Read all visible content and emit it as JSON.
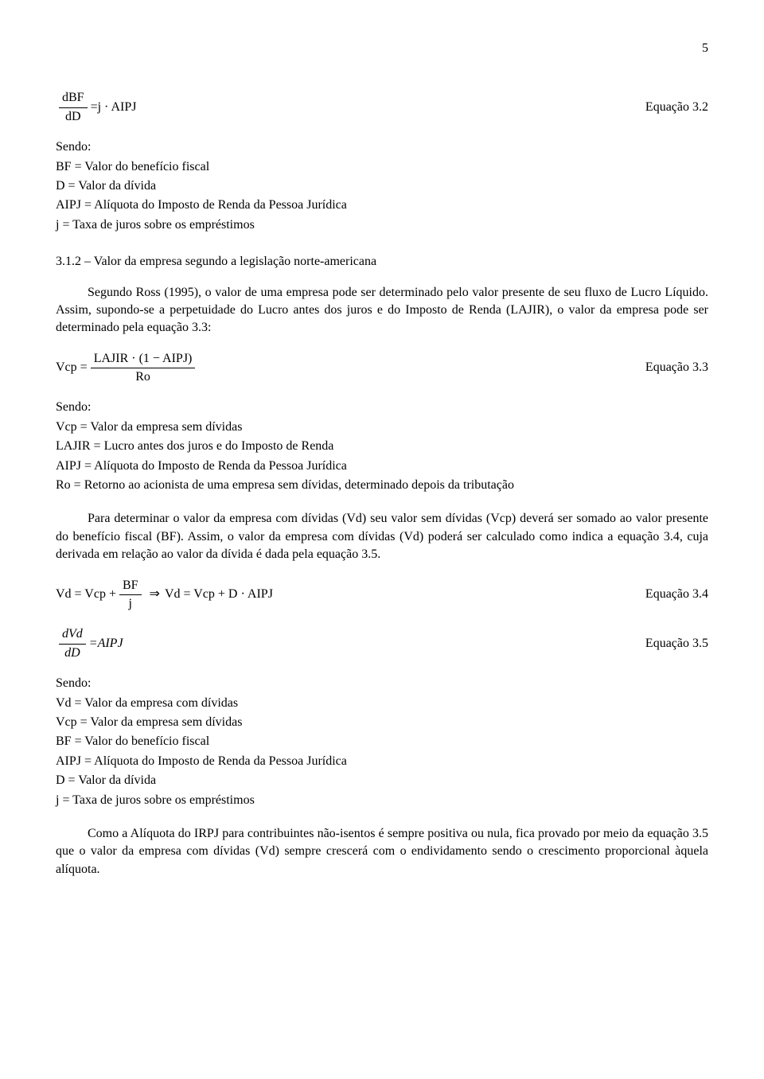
{
  "page_number": "5",
  "equation_3_2": {
    "frac_num": "dBF",
    "frac_den": "dD",
    "eq_sign": " = ",
    "rhs": "j · AIPJ",
    "label": "Equação 3.2"
  },
  "def_list_1": {
    "sendo": "Sendo:",
    "line1": "BF = Valor do benefício fiscal",
    "line2": "D = Valor da dívida",
    "line3": "AIPJ = Alíquota do Imposto de Renda da Pessoa Jurídica",
    "line4": "j = Taxa de juros sobre os empréstimos"
  },
  "section_3_1_2": "3.1.2 – Valor da empresa segundo a legislação norte-americana",
  "para_1": "Segundo Ross (1995), o valor de uma empresa pode ser determinado pelo valor presente de seu fluxo de Lucro Líquido. Assim, supondo-se a perpetuidade do Lucro antes dos juros e do Imposto de Renda (LAJIR), o valor da empresa pode ser determinado pela equação 3.3:",
  "equation_3_3": {
    "lhs": "Vcp = ",
    "frac_num": "LAJIR · (1 − AIPJ)",
    "frac_den": "Ro",
    "label": "Equação 3.3"
  },
  "def_list_2": {
    "sendo": "Sendo:",
    "line1": "Vcp = Valor da empresa sem dívidas",
    "line2": "LAJIR = Lucro antes dos juros e do Imposto de Renda",
    "line3": "AIPJ = Alíquota do Imposto de Renda da Pessoa Jurídica",
    "line4": "Ro = Retorno ao acionista de uma empresa sem dívidas, determinado depois da tributação"
  },
  "para_2": "Para determinar o valor da empresa com dívidas (Vd) seu valor sem dívidas (Vcp) deverá ser somado ao valor presente do benefício fiscal (BF). Assim, o valor da empresa com dívidas (Vd) poderá ser calculado como indica a equação 3.4, cuja derivada em relação ao valor da dívida é dada pela equação 3.5.",
  "equation_3_4": {
    "lhs": "Vd = Vcp + ",
    "frac_num": "BF",
    "frac_den": "j",
    "arrow": " ⇒ ",
    "rhs": "Vd = Vcp + D · AIPJ",
    "label": "Equação 3.4"
  },
  "equation_3_5": {
    "frac_num": "dVd",
    "frac_den": "dD",
    "eq_sign": " = ",
    "rhs": "AIPJ",
    "label": "Equação 3.5"
  },
  "def_list_3": {
    "sendo": "Sendo:",
    "line1": "Vd = Valor da empresa com dívidas",
    "line2": "Vcp = Valor da empresa sem dívidas",
    "line3": "BF = Valor do benefício fiscal",
    "line4": "AIPJ = Alíquota do Imposto de Renda da Pessoa Jurídica",
    "line5": "D = Valor da dívida",
    "line6": "j = Taxa de juros sobre os empréstimos"
  },
  "para_3": "Como a Alíquota do IRPJ para contribuintes não-isentos é sempre positiva ou nula, fica provado por meio da equação 3.5 que o valor da empresa com dívidas (Vd) sempre crescerá com o endividamento sendo o crescimento proporcional àquela alíquota."
}
